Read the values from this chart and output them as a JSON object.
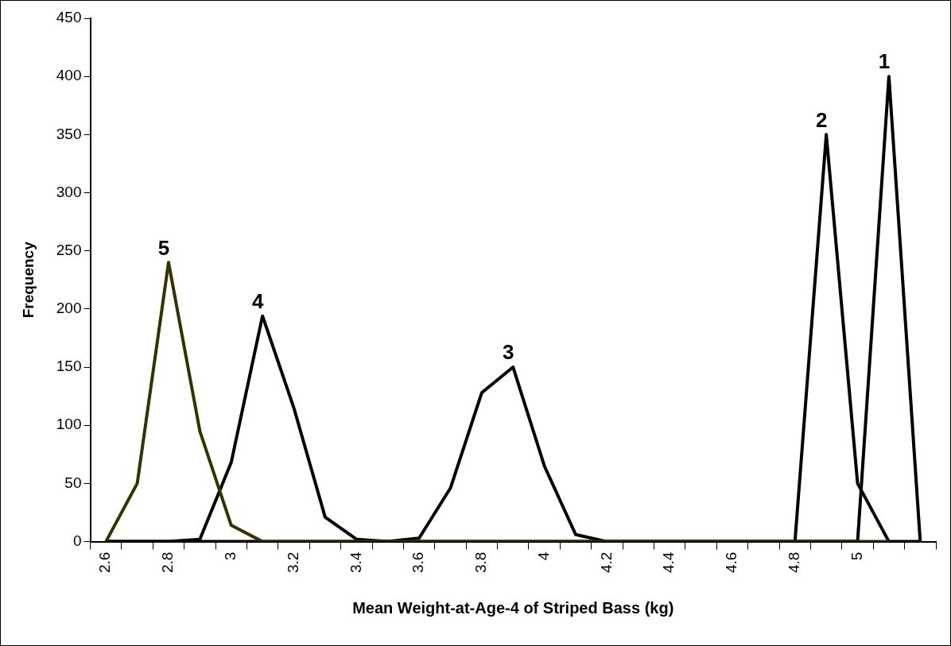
{
  "chart_data": {
    "type": "line",
    "xlabel": "Mean Weight-at-Age-4 of Striped Bass (kg)",
    "ylabel": "Frequency",
    "categories": [
      "2.6",
      null,
      "2.8",
      null,
      "3",
      null,
      "3.2",
      null,
      "3.4",
      null,
      "3.6",
      null,
      "3.8",
      null,
      "4",
      null,
      "4.2",
      null,
      "4.4",
      null,
      "4.6",
      null,
      "4.8",
      null,
      "5",
      null,
      null
    ],
    "series": [
      {
        "name": "5",
        "color": "#333300",
        "values": [
          0,
          50,
          240,
          95,
          14,
          0,
          0,
          0,
          0,
          0,
          0,
          0,
          0,
          0,
          0,
          0,
          0,
          0,
          0,
          0,
          0,
          0,
          0,
          0,
          0,
          0,
          null
        ]
      },
      {
        "name": "4",
        "color": "#000000",
        "values": [
          0,
          0,
          0,
          2,
          68,
          194,
          115,
          21,
          2,
          0,
          0,
          0,
          0,
          0,
          0,
          0,
          0,
          0,
          0,
          0,
          0,
          0,
          0,
          0,
          0,
          null,
          null
        ]
      },
      {
        "name": "3",
        "color": "#000000",
        "values": [
          0,
          0,
          0,
          0,
          0,
          0,
          0,
          0,
          0,
          0,
          3,
          46,
          128,
          150,
          65,
          6,
          0,
          0,
          0,
          0,
          0,
          0,
          0,
          0,
          0,
          null,
          null
        ]
      },
      {
        "name": "2",
        "color": "#000000",
        "values": [
          null,
          null,
          null,
          null,
          null,
          null,
          null,
          null,
          null,
          null,
          null,
          null,
          null,
          null,
          null,
          null,
          null,
          null,
          null,
          null,
          null,
          null,
          0,
          350,
          50,
          0,
          0
        ]
      },
      {
        "name": "1",
        "color": "#000000",
        "values": [
          null,
          null,
          null,
          null,
          null,
          null,
          null,
          null,
          null,
          null,
          null,
          null,
          null,
          null,
          null,
          null,
          null,
          null,
          null,
          null,
          null,
          null,
          null,
          null,
          0,
          400,
          0
        ]
      }
    ],
    "ylim": [
      0,
      450
    ],
    "yticks": [
      0,
      50,
      100,
      150,
      200,
      250,
      300,
      350,
      400,
      450
    ],
    "grid": false,
    "legend": false,
    "marker": "none",
    "line_style": "solid"
  }
}
